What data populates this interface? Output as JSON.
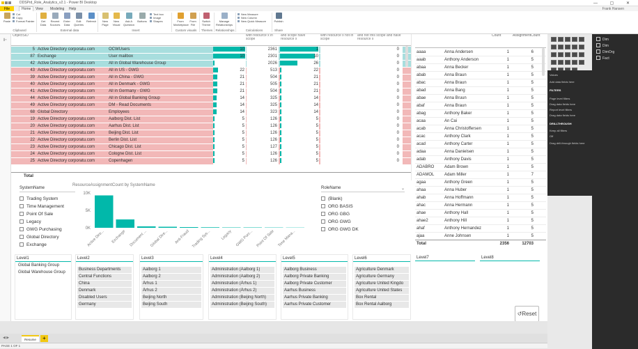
{
  "window": {
    "title": "DDSPrd_Role_Analytics_v2.1 - Power BI Desktop",
    "user": "Frank Hansen",
    "controls": "— ▢ ✕"
  },
  "menu_tabs": [
    "File",
    "Home",
    "View",
    "Modeling",
    "Help"
  ],
  "ribbon": {
    "buttons": [
      "Paste",
      "Get Data",
      "Recent Sources",
      "Enter Data",
      "Edit Queries",
      "Refresh",
      "New Page",
      "New Visual",
      "Ask A Question",
      "Buttons",
      "From Marketplace",
      "From File",
      "Switch Theme",
      "Manage Relationships",
      "Publish"
    ],
    "clip": [
      "Cut",
      "Copy",
      "Format Painter"
    ],
    "insert": [
      "Text box",
      "Image",
      "Shapes"
    ],
    "calc": [
      "New Measure",
      "New Column",
      "New Quick Measure"
    ],
    "groups": [
      "Clipboard",
      "External data",
      "Insert",
      "Custom visuals",
      "Themes",
      "Relationships",
      "Calculations",
      "Share"
    ]
  },
  "table1": {
    "headers": [
      "ObjectSID",
      "",
      "",
      "",
      "with resource x in scope",
      "and scope have resource x",
      "with resource x not in scope",
      "and not this scope and have resource x"
    ],
    "rows": [
      {
        "cnt": "5",
        "sys": "Active Directory corporatu.com",
        "role": "OCWUsers",
        "v1": "10",
        "p1": 1.0,
        "c2": "2361",
        "v3": "1",
        "p3": 1.0,
        "c4": "0",
        "color": "#a8dede"
      },
      {
        "cnt": "87",
        "sys": "Exchange",
        "role": "User mailbox",
        "v1": "10",
        "p1": 1.0,
        "c2": "2301",
        "v3": "10",
        "p3": 0.9,
        "c4": "0",
        "color": "#a8dede"
      },
      {
        "cnt": "42",
        "sys": "Active Directory corporatu.com",
        "role": "All in Global Warehouse Group",
        "v1": "",
        "p1": 0.0,
        "c2": "2026",
        "v3": "26",
        "p3": 0.45,
        "c4": "0",
        "color": "#a8dede"
      },
      {
        "cnt": "43",
        "sys": "Active Directory corporatu.com",
        "role": "All in US - GWG",
        "v1": "22",
        "p1": 0.15,
        "c2": "513",
        "v3": "22",
        "p3": 0.0,
        "c4": "0",
        "color": "#f2b8b8"
      },
      {
        "cnt": "39",
        "sys": "Active Directory corporatu.com",
        "role": "All in China - GWG",
        "v1": "21",
        "p1": 0.14,
        "c2": "504",
        "v3": "21",
        "p3": 0.0,
        "c4": "0",
        "color": "#f2b8b8"
      },
      {
        "cnt": "40",
        "sys": "Active Directory corporatu.com",
        "role": "All in Denmark - GWG",
        "v1": "21",
        "p1": 0.14,
        "c2": "505",
        "v3": "21",
        "p3": 0.0,
        "c4": "0",
        "color": "#f2b8b8"
      },
      {
        "cnt": "41",
        "sys": "Active Directory corporatu.com",
        "role": "All in Germany - GWG",
        "v1": "21",
        "p1": 0.14,
        "c2": "504",
        "v3": "21",
        "p3": 0.0,
        "c4": "0",
        "color": "#f2b8b8"
      },
      {
        "cnt": "44",
        "sys": "Active Directory corporatu.com",
        "role": "All in Global Banking Group",
        "v1": "14",
        "p1": 0.1,
        "c2": "325",
        "v3": "14",
        "p3": 0.0,
        "c4": "0",
        "color": "#f2b8b8"
      },
      {
        "cnt": "49",
        "sys": "Active Directory corporatu.com",
        "role": "DM - Read Documents",
        "v1": "14",
        "p1": 0.1,
        "c2": "325",
        "v3": "14",
        "p3": 0.0,
        "c4": "0",
        "color": "#f2b8b8"
      },
      {
        "cnt": "68",
        "sys": "Global Directory",
        "role": "Employees",
        "v1": "14",
        "p1": 0.1,
        "c2": "323",
        "v3": "14",
        "p3": 0.0,
        "c4": "0",
        "color": "#f2b8b8"
      },
      {
        "cnt": "19",
        "sys": "Active Directory corporatu.com",
        "role": "Aalborg Dist. List",
        "v1": "5",
        "p1": 0.04,
        "c2": "126",
        "v3": "5",
        "p3": 0.0,
        "c4": "0",
        "color": "#f2b8b8"
      },
      {
        "cnt": "20",
        "sys": "Active Directory corporatu.com",
        "role": "Aarhus Dist. List",
        "v1": "5",
        "p1": 0.04,
        "c2": "126",
        "v3": "5",
        "p3": 0.0,
        "c4": "0",
        "color": "#f2b8b8"
      },
      {
        "cnt": "21",
        "sys": "Active Directory corporatu.com",
        "role": "Beijing Dist. List",
        "v1": "5",
        "p1": 0.04,
        "c2": "126",
        "v3": "5",
        "p3": 0.0,
        "c4": "0",
        "color": "#f2b8b8"
      },
      {
        "cnt": "22",
        "sys": "Active Directory corporatu.com",
        "role": "Berlin Dist. List",
        "v1": "5",
        "p1": 0.04,
        "c2": "126",
        "v3": "5",
        "p3": 0.0,
        "c4": "0",
        "color": "#f2b8b8"
      },
      {
        "cnt": "23",
        "sys": "Active Directory corporatu.com",
        "role": "Chicago Dist. List",
        "v1": "5",
        "p1": 0.04,
        "c2": "127",
        "v3": "5",
        "p3": 0.0,
        "c4": "0",
        "color": "#f2b8b8"
      },
      {
        "cnt": "24",
        "sys": "Active Directory corporatu.com",
        "role": "Cologne Dist. List",
        "v1": "5",
        "p1": 0.04,
        "c2": "126",
        "v3": "5",
        "p3": 0.0,
        "c4": "0",
        "color": "#f2b8b8"
      },
      {
        "cnt": "25",
        "sys": "Active Directory corporatu.com",
        "role": "Copenhagen",
        "v1": "5",
        "p1": 0.04,
        "c2": "126",
        "v3": "5",
        "p3": 0.0,
        "c4": "0",
        "color": "#f2b8b8"
      }
    ],
    "total": "Total"
  },
  "table2": {
    "headers": [
      "",
      "",
      "Count",
      "AssignmentCount"
    ],
    "rows": [
      [
        "aaaa",
        "Anna Andersen",
        "1",
        "6"
      ],
      [
        "aaab",
        "Anthony Anderson",
        "1",
        "5"
      ],
      [
        "abaa",
        "Anna Becker",
        "1",
        "5"
      ],
      [
        "abab",
        "Anna Braun",
        "1",
        "5"
      ],
      [
        "abac",
        "Anna Braun",
        "1",
        "5"
      ],
      [
        "abad",
        "Anna Bang",
        "1",
        "5"
      ],
      [
        "abae",
        "Anna Bruun",
        "1",
        "5"
      ],
      [
        "abaf",
        "Anna Braun",
        "1",
        "5"
      ],
      [
        "abag",
        "Anthony Baker",
        "1",
        "5"
      ],
      [
        "acaa",
        "An Cai",
        "1",
        "5"
      ],
      [
        "acab",
        "Anna Christoffersen",
        "1",
        "5"
      ],
      [
        "acac",
        "Anthony Clark",
        "1",
        "5"
      ],
      [
        "acad",
        "Anthony Carter",
        "1",
        "5"
      ],
      [
        "adaa",
        "Anna Danielsen",
        "1",
        "5"
      ],
      [
        "adab",
        "Anthony Davis",
        "1",
        "5"
      ],
      [
        "ADABRO",
        "Adam Brown",
        "1",
        "5"
      ],
      [
        "ADAMOL",
        "Adam Miller",
        "1",
        "7"
      ],
      [
        "agaa",
        "Anthony Green",
        "1",
        "5"
      ],
      [
        "ahaa",
        "Anna Huber",
        "1",
        "5"
      ],
      [
        "ahab",
        "Anna Hoffmann",
        "1",
        "5"
      ],
      [
        "ahac",
        "Anna Hermann",
        "1",
        "5"
      ],
      [
        "ahae",
        "Anthony Hall",
        "1",
        "5"
      ],
      [
        "ahae2",
        "Anthony Hill",
        "1",
        "5"
      ],
      [
        "ahaf",
        "Anthony Hernandez",
        "1",
        "5"
      ],
      [
        "ajaa",
        "Anne Johnsen",
        "1",
        "5"
      ]
    ],
    "total_label": "Total",
    "total_count": "2356",
    "total_assign": "12703"
  },
  "slicer_system": {
    "title": "SystemName",
    "items": [
      "Trading System",
      "Time Management",
      "Point Of Sale",
      "Legacy",
      "GWG Purchasing",
      "Global Directory",
      "Exchange"
    ]
  },
  "slicer_role": {
    "title": "RoleName",
    "items": [
      "(Blank)",
      "ORG BASIS",
      "ORG GBG",
      "ORG GWG",
      "ORG GWG DK"
    ]
  },
  "chart_data": {
    "type": "bar",
    "title": "ResourceAssignmentCount by SystemName",
    "categories": [
      "Active Dire...",
      "Exchange",
      "Document ...",
      "Global Dire...",
      "Anti-Fraud",
      "Trading Sys...",
      "Legacy",
      "GWG Purc...",
      "Point Of Sale",
      "Time Mana..."
    ],
    "values": [
      9300,
      2400,
      400,
      300,
      200,
      150,
      100,
      100,
      80,
      60
    ],
    "yticks": [
      "10K",
      "5K",
      "0K"
    ],
    "ylim": [
      0,
      10000
    ],
    "color": "#01b8aa"
  },
  "levels": [
    {
      "title": "Level1",
      "items": [
        "Global Banking Group",
        "Global Warehouse Group"
      ]
    },
    {
      "title": "Level2",
      "items": [
        "Business Departments",
        "Central Functions",
        "China",
        "Denmark",
        "Disabled Users",
        "Germany"
      ]
    },
    {
      "title": "Level3",
      "items": [
        "Aalborg 1",
        "Aalborg 2",
        "Århus 1",
        "Århus 2",
        "Beijing North",
        "Beijing South"
      ]
    },
    {
      "title": "Level4",
      "items": [
        "Administration (Aalborg 1)",
        "Administration (Aalborg 2)",
        "Administration (Århus 1)",
        "Administration (Århus 2)",
        "Administration (Beijing North)",
        "Administration (Beijing South)"
      ]
    },
    {
      "title": "Level5",
      "items": [
        "Aalborg Business",
        "Aalborg Private Banking",
        "Aalborg Private Customer",
        "Aarhus Business",
        "Aarhus Private Banking",
        "Aarhus Private Customer"
      ]
    },
    {
      "title": "Level6",
      "items": [
        "Agriculture Denmark",
        "Agriculture Germany",
        "Agriculture United Kingdo",
        "Agriculture United States",
        "Box Rental",
        "Box Rental Aalborg"
      ]
    },
    {
      "title": "Level7",
      "items": []
    },
    {
      "title": "Level8",
      "items": []
    }
  ],
  "reset_label": "Reset",
  "page_tab": "Resume",
  "status": "PAGE 1 OF 1",
  "rightpane": {
    "viz_labels": [
      "Values",
      "Add data fields here",
      "FILTERS",
      "Page level filters",
      "Drag data fields here",
      "Report level filters",
      "Drag data fields here",
      "DRILLTHROUGH",
      "Keep all filters",
      "Off",
      "Drag drill-through fields here"
    ],
    "fields": [
      "Dim",
      "Dim",
      "DimOrg",
      "Fact"
    ]
  }
}
